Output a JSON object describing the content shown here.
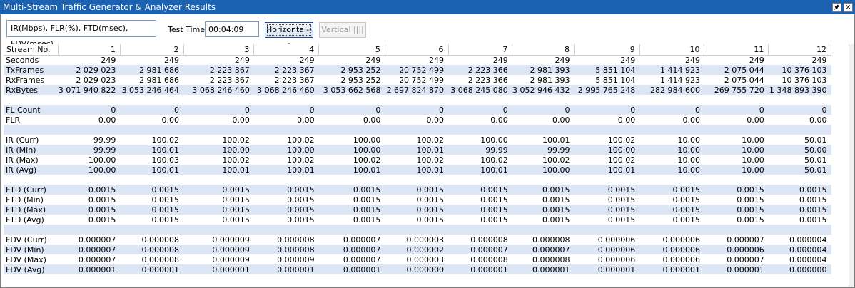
{
  "window": {
    "title": "Multi-Stream Traffic Generator & Analyzer Results",
    "pin_icon": "pin-icon",
    "close_icon": "close-icon"
  },
  "toolbar": {
    "legend": "IR(Mbps), FLR(%), FTD(msec), FDV(msec)",
    "test_time_label": "Test Time",
    "test_time_value": "00:04:09",
    "horizontal_label": "Horizontal---",
    "vertical_label": "Vertical ||||"
  },
  "grid": {
    "header": [
      "Stream No.",
      "1",
      "2",
      "3",
      "4",
      "5",
      "6",
      "7",
      "8",
      "9",
      "10",
      "11",
      "12"
    ],
    "rows": [
      {
        "label": "Seconds",
        "values": [
          "249",
          "249",
          "249",
          "249",
          "249",
          "249",
          "249",
          "249",
          "249",
          "249",
          "249",
          "249"
        ]
      },
      {
        "label": "TxFrames",
        "values": [
          "2 029 023",
          "2 981 686",
          "2 223 367",
          "2 223 367",
          "2 953 252",
          "20 752 499",
          "2 223 366",
          "2 981 393",
          "5 851 104",
          "1 414 923",
          "2 075 044",
          "10 376 103"
        ]
      },
      {
        "label": "RxFrames",
        "values": [
          "2 029 023",
          "2 981 686",
          "2 223 367",
          "2 223 367",
          "2 953 252",
          "20 752 499",
          "2 223 366",
          "2 981 393",
          "5 851 104",
          "1 414 923",
          "2 075 044",
          "10 376 103"
        ]
      },
      {
        "label": "RxBytes",
        "values": [
          "3 071 940 822",
          "3 053 246 464",
          "3 068 246 460",
          "3 068 246 460",
          "3 053 662 568",
          "2 697 824 870",
          "3 068 245 080",
          "3 052 946 432",
          "2 995 765 248",
          "282 984 600",
          "269 755 720",
          "1 348 893 390"
        ]
      },
      {
        "label": "",
        "values": [
          "",
          "",
          "",
          "",
          "",
          "",
          "",
          "",
          "",
          "",
          "",
          ""
        ]
      },
      {
        "label": "FL Count",
        "values": [
          "0",
          "0",
          "0",
          "0",
          "0",
          "0",
          "0",
          "0",
          "0",
          "0",
          "0",
          "0"
        ]
      },
      {
        "label": "FLR",
        "values": [
          "0.00",
          "0.00",
          "0.00",
          "0.00",
          "0.00",
          "0.00",
          "0.00",
          "0.00",
          "0.00",
          "0.00",
          "0.00",
          "0.00"
        ]
      },
      {
        "label": "",
        "values": [
          "",
          "",
          "",
          "",
          "",
          "",
          "",
          "",
          "",
          "",
          "",
          ""
        ]
      },
      {
        "label": "IR (Curr)",
        "values": [
          "99.99",
          "100.02",
          "100.02",
          "100.02",
          "100.00",
          "100.02",
          "100.00",
          "100.01",
          "100.02",
          "10.00",
          "10.00",
          "50.01"
        ]
      },
      {
        "label": "IR (Min)",
        "values": [
          "99.99",
          "100.01",
          "100.00",
          "100.00",
          "100.00",
          "100.01",
          "99.99",
          "99.99",
          "100.00",
          "10.00",
          "10.00",
          "50.00"
        ]
      },
      {
        "label": "IR (Max)",
        "values": [
          "100.00",
          "100.03",
          "100.02",
          "100.02",
          "100.02",
          "100.02",
          "100.02",
          "100.02",
          "100.02",
          "10.00",
          "10.00",
          "50.01"
        ]
      },
      {
        "label": "IR (Avg)",
        "values": [
          "100.00",
          "100.01",
          "100.01",
          "100.01",
          "100.01",
          "100.01",
          "100.01",
          "100.00",
          "100.01",
          "10.00",
          "10.00",
          "50.01"
        ]
      },
      {
        "label": "",
        "values": [
          "",
          "",
          "",
          "",
          "",
          "",
          "",
          "",
          "",
          "",
          "",
          ""
        ]
      },
      {
        "label": "FTD (Curr)",
        "values": [
          "0.0015",
          "0.0015",
          "0.0015",
          "0.0015",
          "0.0015",
          "0.0015",
          "0.0015",
          "0.0015",
          "0.0015",
          "0.0015",
          "0.0015",
          "0.0015"
        ]
      },
      {
        "label": "FTD (Min)",
        "values": [
          "0.0015",
          "0.0015",
          "0.0015",
          "0.0015",
          "0.0015",
          "0.0015",
          "0.0015",
          "0.0015",
          "0.0015",
          "0.0015",
          "0.0015",
          "0.0015"
        ]
      },
      {
        "label": "FTD (Max)",
        "values": [
          "0.0015",
          "0.0015",
          "0.0015",
          "0.0015",
          "0.0015",
          "0.0015",
          "0.0015",
          "0.0015",
          "0.0015",
          "0.0015",
          "0.0015",
          "0.0015"
        ]
      },
      {
        "label": "FTD (Avg)",
        "values": [
          "0.0015",
          "0.0015",
          "0.0015",
          "0.0015",
          "0.0015",
          "0.0015",
          "0.0015",
          "0.0015",
          "0.0015",
          "0.0015",
          "0.0015",
          "0.0015"
        ]
      },
      {
        "label": "",
        "values": [
          "",
          "",
          "",
          "",
          "",
          "",
          "",
          "",
          "",
          "",
          "",
          ""
        ]
      },
      {
        "label": "FDV (Curr)",
        "values": [
          "0.000007",
          "0.000008",
          "0.000009",
          "0.000008",
          "0.000007",
          "0.000003",
          "0.000008",
          "0.000008",
          "0.000006",
          "0.000006",
          "0.000007",
          "0.000004"
        ]
      },
      {
        "label": "FDV (Min)",
        "values": [
          "0.000007",
          "0.000008",
          "0.000009",
          "0.000008",
          "0.000007",
          "0.000002",
          "0.000007",
          "0.000007",
          "0.000006",
          "0.000006",
          "0.000006",
          "0.000004"
        ]
      },
      {
        "label": "FDV (Max)",
        "values": [
          "0.000007",
          "0.000008",
          "0.000009",
          "0.000009",
          "0.000007",
          "0.000003",
          "0.000008",
          "0.000008",
          "0.000006",
          "0.000006",
          "0.000007",
          "0.000004"
        ]
      },
      {
        "label": "FDV (Avg)",
        "values": [
          "0.000001",
          "0.000001",
          "0.000001",
          "0.000001",
          "0.000001",
          "0.000000",
          "0.000001",
          "0.000001",
          "0.000001",
          "0.000001",
          "0.000001",
          "0.000000"
        ]
      }
    ]
  },
  "colors": {
    "titlebar": "#1c62b3",
    "alt_row": "#dce6f4"
  }
}
